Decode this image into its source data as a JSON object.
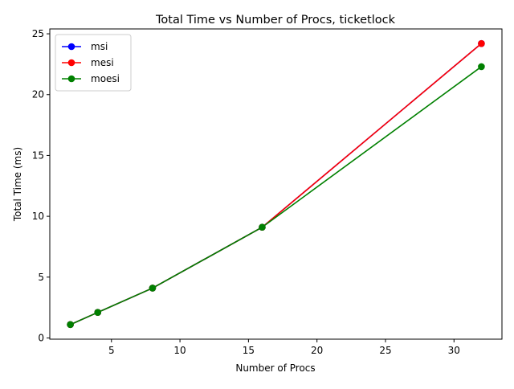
{
  "chart_data": {
    "type": "line",
    "title": "Total Time vs Number of Procs, ticketlock",
    "xlabel": "Number of Procs",
    "ylabel": "Total Time (ms)",
    "xlim": [
      0.5,
      33.5
    ],
    "ylim": [
      -0.1,
      25.4
    ],
    "xticks": [
      5,
      10,
      15,
      20,
      25,
      30
    ],
    "yticks": [
      0,
      5,
      10,
      15,
      20,
      25
    ],
    "grid": false,
    "legend_position": "top-left",
    "x": [
      2,
      4,
      8,
      16,
      32
    ],
    "series": [
      {
        "name": "msi",
        "color": "#0000ff",
        "values": [
          1.1,
          2.1,
          4.1,
          9.1,
          24.2
        ]
      },
      {
        "name": "mesi",
        "color": "#ff0000",
        "values": [
          1.1,
          2.1,
          4.1,
          9.1,
          24.2
        ]
      },
      {
        "name": "moesi",
        "color": "#008000",
        "values": [
          1.1,
          2.1,
          4.1,
          9.1,
          22.3
        ]
      }
    ]
  }
}
